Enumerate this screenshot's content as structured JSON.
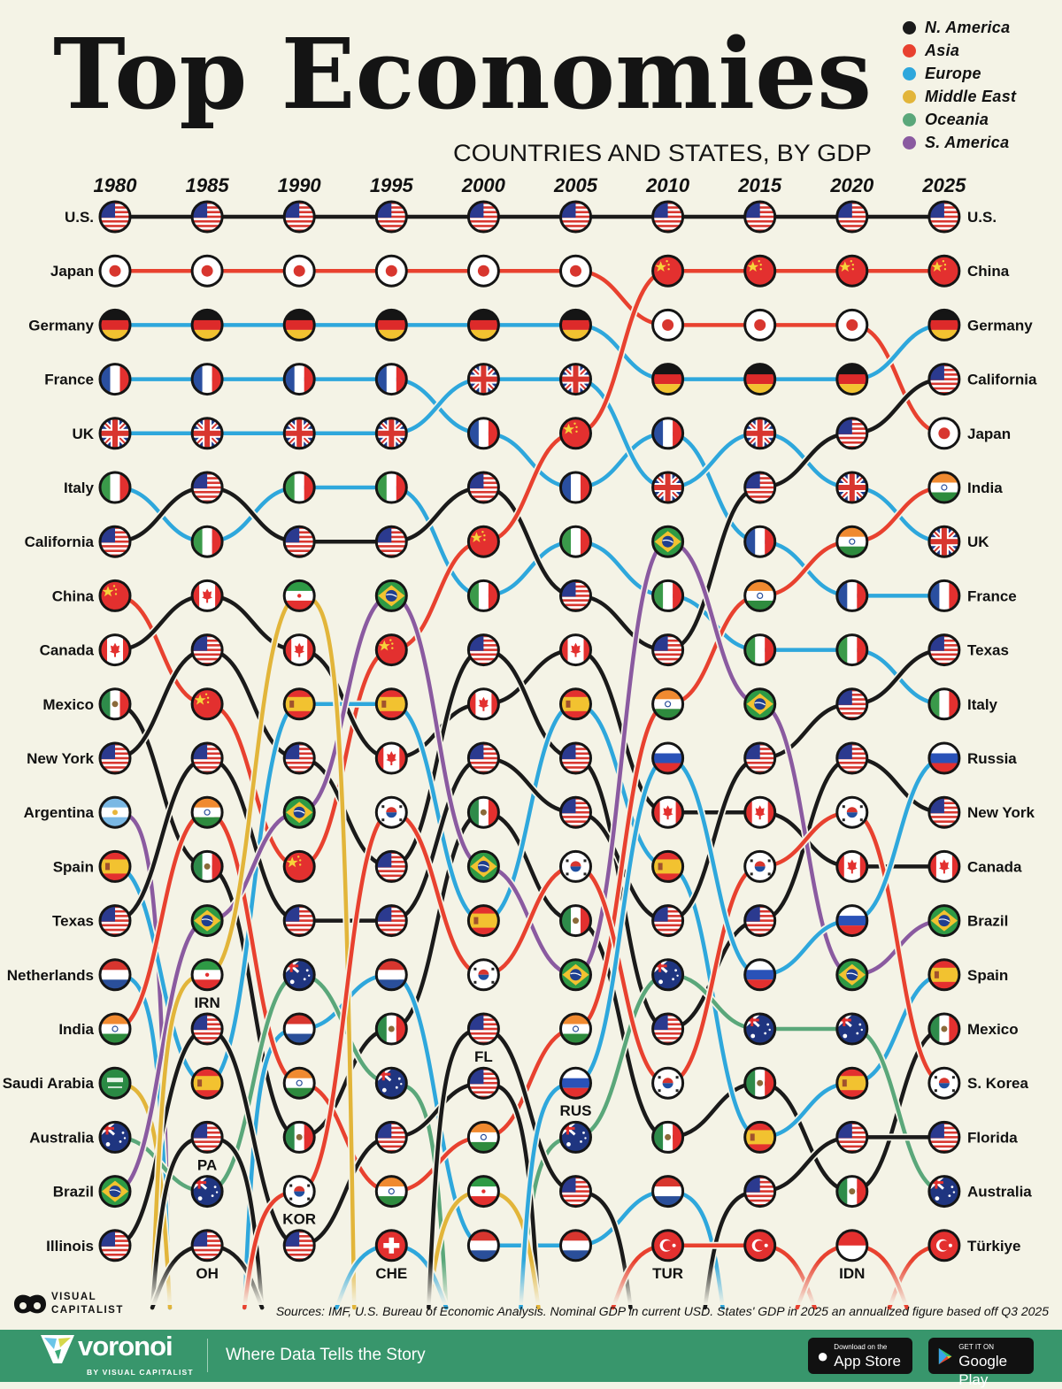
{
  "header": {
    "title": "Top Economies",
    "subtitle": "COUNTRIES AND STATES, BY GDP"
  },
  "legend": [
    {
      "label": "N. America",
      "color": "#1a1a1a"
    },
    {
      "label": "Asia",
      "color": "#e8412f"
    },
    {
      "label": "Europe",
      "color": "#2ea7dc"
    },
    {
      "label": "Middle East",
      "color": "#e2b53a"
    },
    {
      "label": "Oceania",
      "color": "#5aa77a"
    },
    {
      "label": "S. America",
      "color": "#8a5aa0"
    }
  ],
  "chart_data": {
    "type": "bump",
    "title": "Top Economies",
    "subtitle": "COUNTRIES AND STATES, BY GDP",
    "years": [
      "1980",
      "1985",
      "1990",
      "1995",
      "2000",
      "2005",
      "2010",
      "2015",
      "2020",
      "2025"
    ],
    "rank_range": [
      1,
      20
    ],
    "entities": {
      "us": {
        "flag": "us",
        "region": "N. America",
        "left": "U.S.",
        "right": "U.S."
      },
      "jp": {
        "flag": "jp",
        "region": "Asia",
        "left": "Japan",
        "right": "Japan"
      },
      "de": {
        "flag": "de",
        "region": "Europe",
        "left": "Germany",
        "right": "Germany"
      },
      "fr": {
        "flag": "fr",
        "region": "Europe",
        "left": "France",
        "right": "France"
      },
      "uk": {
        "flag": "uk",
        "region": "Europe",
        "left": "UK",
        "right": "UK"
      },
      "it": {
        "flag": "it",
        "region": "Europe",
        "left": "Italy",
        "right": "Italy"
      },
      "cal": {
        "flag": "us",
        "region": "N. America",
        "left": "California",
        "right": "California"
      },
      "cn": {
        "flag": "cn",
        "region": "Asia",
        "left": "China",
        "right": "China"
      },
      "can": {
        "flag": "ca",
        "region": "N. America",
        "left": "Canada",
        "right": "Canada"
      },
      "mx": {
        "flag": "mx",
        "region": "N. America",
        "left": "Mexico",
        "right": "Mexico"
      },
      "ny": {
        "flag": "us",
        "region": "N. America",
        "left": "New York",
        "right": "New York"
      },
      "ar": {
        "flag": "ar",
        "region": "S. America",
        "left": "Argentina"
      },
      "es": {
        "flag": "es",
        "region": "Europe",
        "left": "Spain",
        "right": "Spain"
      },
      "tx": {
        "flag": "us",
        "region": "N. America",
        "left": "Texas",
        "right": "Texas"
      },
      "nl": {
        "flag": "nl",
        "region": "Europe",
        "left": "Netherlands"
      },
      "in": {
        "flag": "in",
        "region": "Asia",
        "left": "India",
        "right": "India"
      },
      "sa": {
        "flag": "sa",
        "region": "Middle East",
        "left": "Saudi Arabia"
      },
      "au": {
        "flag": "au",
        "region": "Oceania",
        "left": "Australia",
        "right": "Australia"
      },
      "br": {
        "flag": "br",
        "region": "S. America",
        "left": "Brazil",
        "right": "Brazil"
      },
      "il": {
        "flag": "us",
        "region": "N. America",
        "left": "Illinois"
      },
      "ir": {
        "flag": "ir",
        "region": "Middle East",
        "code": "IRN"
      },
      "pa": {
        "flag": "us",
        "region": "N. America",
        "code": "PA"
      },
      "oh": {
        "flag": "us",
        "region": "N. America",
        "code": "OH"
      },
      "kr": {
        "flag": "kr",
        "region": "Asia",
        "code": "KOR",
        "right": "S. Korea"
      },
      "ch": {
        "flag": "ch",
        "region": "Europe",
        "code": "CHE"
      },
      "fl": {
        "flag": "us",
        "region": "N. America",
        "code": "FL",
        "right": "Florida"
      },
      "ru": {
        "flag": "ru",
        "region": "Europe",
        "code": "RUS",
        "right": "Russia"
      },
      "tr": {
        "flag": "tr",
        "region": "Asia",
        "code": "TUR",
        "right": "Türkiye"
      },
      "id": {
        "flag": "id",
        "region": "Asia",
        "code": "IDN"
      }
    },
    "rankings": [
      [
        "us",
        "jp",
        "de",
        "fr",
        "uk",
        "it",
        "cal",
        "cn",
        "can",
        "mx",
        "ny",
        "ar",
        "es",
        "tx",
        "nl",
        "in",
        "sa",
        "au",
        "br",
        "il"
      ],
      [
        "us",
        "jp",
        "de",
        "fr",
        "uk",
        "cal",
        "it",
        "can",
        "ny",
        "cn",
        "tx",
        "in",
        "mx",
        "br",
        "ir",
        "il",
        "es",
        "pa",
        "au",
        "oh"
      ],
      [
        "us",
        "jp",
        "de",
        "fr",
        "uk",
        "it",
        "cal",
        "ir",
        "can",
        "es",
        "ny",
        "br",
        "cn",
        "tx",
        "au",
        "nl",
        "in",
        "mx",
        "kr",
        "il"
      ],
      [
        "us",
        "jp",
        "de",
        "fr",
        "uk",
        "it",
        "cal",
        "br",
        "cn",
        "es",
        "can",
        "kr",
        "ny",
        "tx",
        "nl",
        "mx",
        "au",
        "il",
        "in",
        "ch"
      ],
      [
        "us",
        "jp",
        "de",
        "uk",
        "fr",
        "cal",
        "cn",
        "it",
        "ny",
        "can",
        "tx",
        "mx",
        "br",
        "es",
        "kr",
        "fl",
        "il",
        "in",
        "ir",
        "nl"
      ],
      [
        "us",
        "jp",
        "de",
        "uk",
        "cn",
        "fr",
        "it",
        "cal",
        "can",
        "es",
        "ny",
        "tx",
        "kr",
        "mx",
        "br",
        "in",
        "ru",
        "au",
        "fl",
        "nl"
      ],
      [
        "us",
        "cn",
        "jp",
        "de",
        "fr",
        "uk",
        "br",
        "it",
        "cal",
        "in",
        "ru",
        "can",
        "es",
        "tx",
        "au",
        "ny",
        "kr",
        "mx",
        "nl",
        "tr"
      ],
      [
        "us",
        "cn",
        "jp",
        "de",
        "uk",
        "cal",
        "fr",
        "in",
        "it",
        "br",
        "tx",
        "can",
        "kr",
        "ny",
        "ru",
        "au",
        "mx",
        "es",
        "fl",
        "tr"
      ],
      [
        "us",
        "cn",
        "jp",
        "de",
        "cal",
        "uk",
        "in",
        "fr",
        "it",
        "tx",
        "ny",
        "kr",
        "can",
        "ru",
        "br",
        "au",
        "es",
        "fl",
        "mx",
        "id"
      ],
      [
        "us",
        "cn",
        "de",
        "cal",
        "jp",
        "in",
        "uk",
        "fr",
        "tx",
        "it",
        "ru",
        "ny",
        "can",
        "br",
        "es",
        "mx",
        "kr",
        "fl",
        "au",
        "tr"
      ]
    ]
  },
  "footer": {
    "sources": "Sources: IMF, U.S. Bureau of Economic Analysis. Nominal GDP in current USD. States' GDP in 2025 an annualized figure based off Q3 2025",
    "vc_logo_line1": "VISUAL",
    "vc_logo_line2": "CAPITALIST",
    "brand": "voronoi",
    "brand_sub": "BY VISUAL CAPITALIST",
    "tagline": "Where Data Tells the Story",
    "appstore_small": "Download on the",
    "appstore_big": "App Store",
    "googleplay_small": "GET IT ON",
    "googleplay_big": "Google Play"
  }
}
